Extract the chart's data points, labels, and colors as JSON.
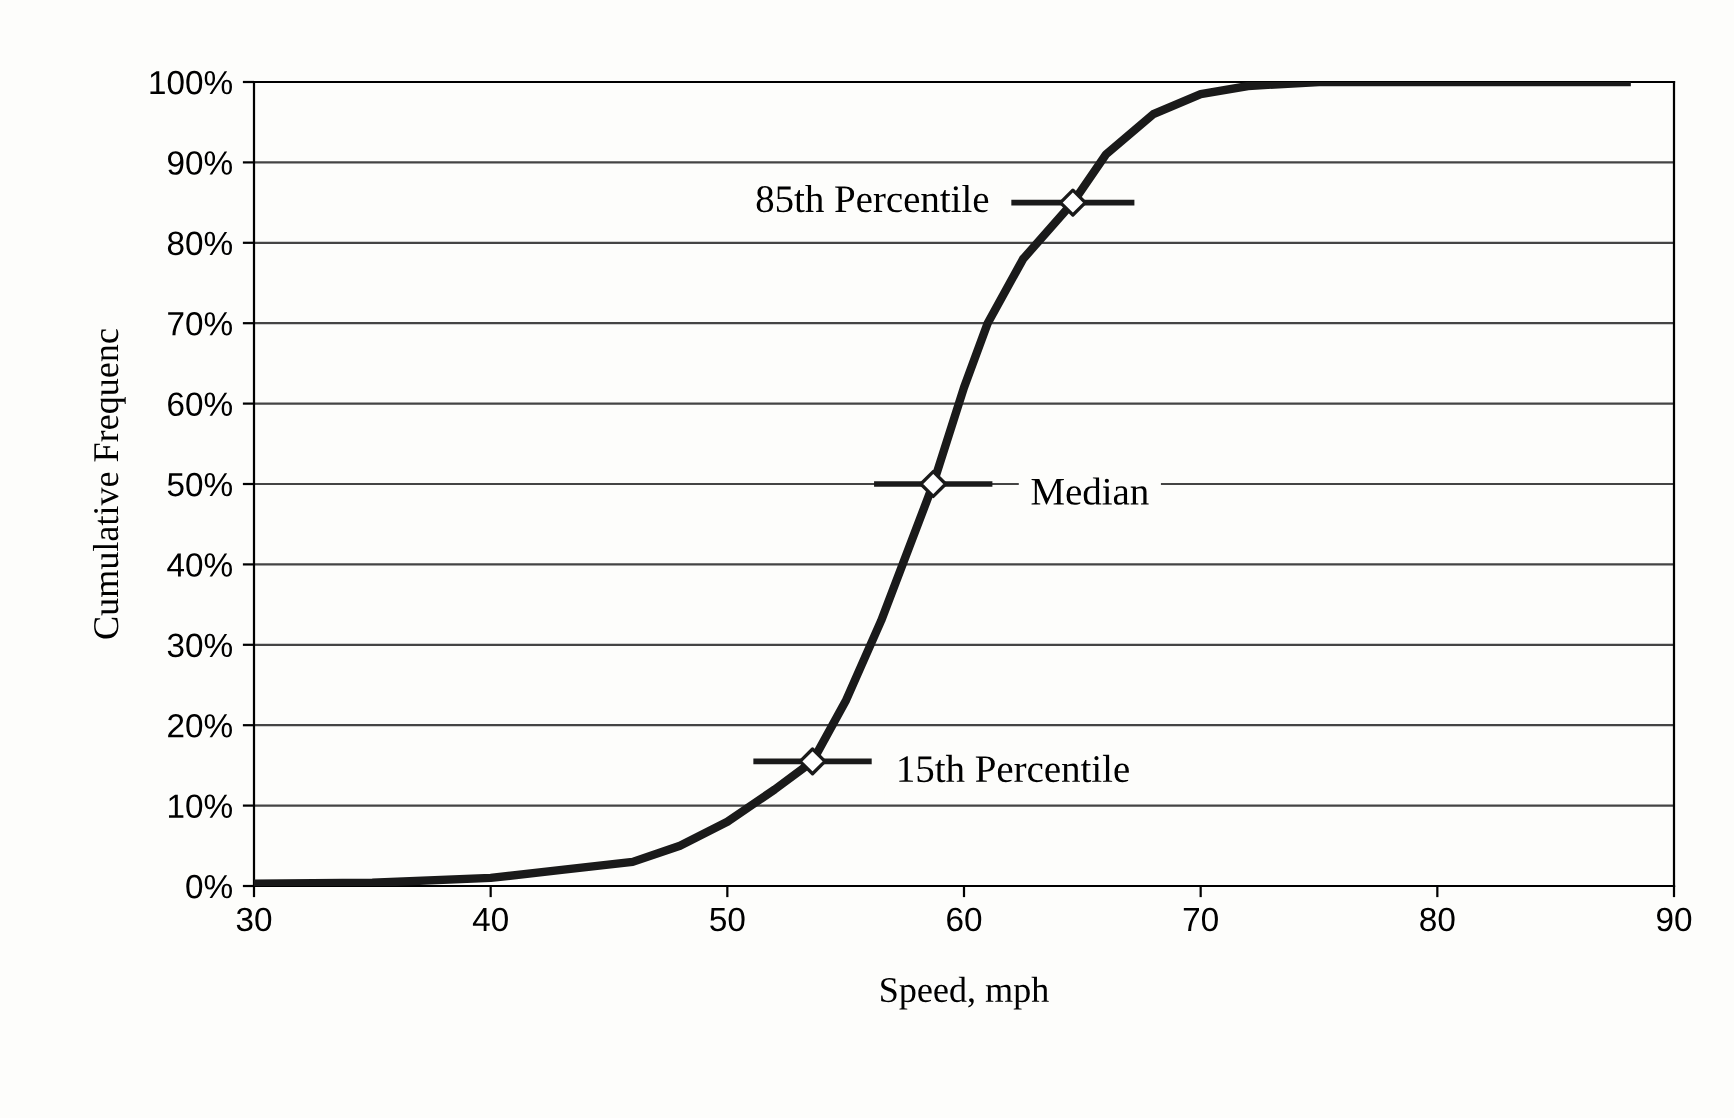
{
  "chart_data": {
    "type": "line",
    "xlabel": "Speed, mph",
    "ylabel": "Cumulative Frequenc",
    "xlim": [
      30,
      90
    ],
    "xticks": [
      30,
      40,
      50,
      60,
      70,
      80,
      90
    ],
    "ylim": [
      0,
      100
    ],
    "yticks": [
      {
        "value": 0,
        "label": "0%"
      },
      {
        "value": 10,
        "label": "10%"
      },
      {
        "value": 20,
        "label": "20%"
      },
      {
        "value": 30,
        "label": "30%"
      },
      {
        "value": 40,
        "label": "40%"
      },
      {
        "value": 50,
        "label": "50%"
      },
      {
        "value": 60,
        "label": "60%"
      },
      {
        "value": 70,
        "label": "70%"
      },
      {
        "value": 80,
        "label": "80%"
      },
      {
        "value": 90,
        "label": "90%"
      },
      {
        "value": 100,
        "label": "100%"
      }
    ],
    "grid": "y",
    "legend": false,
    "series": [
      {
        "color": "#1a1a1a",
        "marker": "none",
        "line_style": "solid",
        "x": [
          30,
          35,
          40,
          43,
          46,
          48,
          50,
          52,
          53.6,
          55,
          56.5,
          58.7,
          60,
          61,
          62.5,
          64.6,
          66,
          68,
          70,
          72,
          75,
          88
        ],
        "values": [
          0.3,
          0.4,
          1,
          2,
          3,
          5,
          8,
          12,
          15.5,
          23,
          33,
          50,
          62,
          70,
          78,
          85,
          91,
          96,
          98.5,
          99.5,
          100,
          100
        ]
      },
      {
        "type": "scatter",
        "color": "#1a1a1a",
        "marker": "diamond",
        "x": [
          53.6,
          58.7,
          64.6
        ],
        "values": [
          15.5,
          50,
          85
        ],
        "xerrors": [
          2.5,
          2.5,
          2.6
        ]
      }
    ],
    "annotations": [
      {
        "text": "85th Percentile",
        "x": 64.6,
        "y": 85
      },
      {
        "text": "Median",
        "x": 58.7,
        "y": 50
      },
      {
        "text": "15th Percentile",
        "x": 53.6,
        "y": 15.5
      }
    ]
  }
}
